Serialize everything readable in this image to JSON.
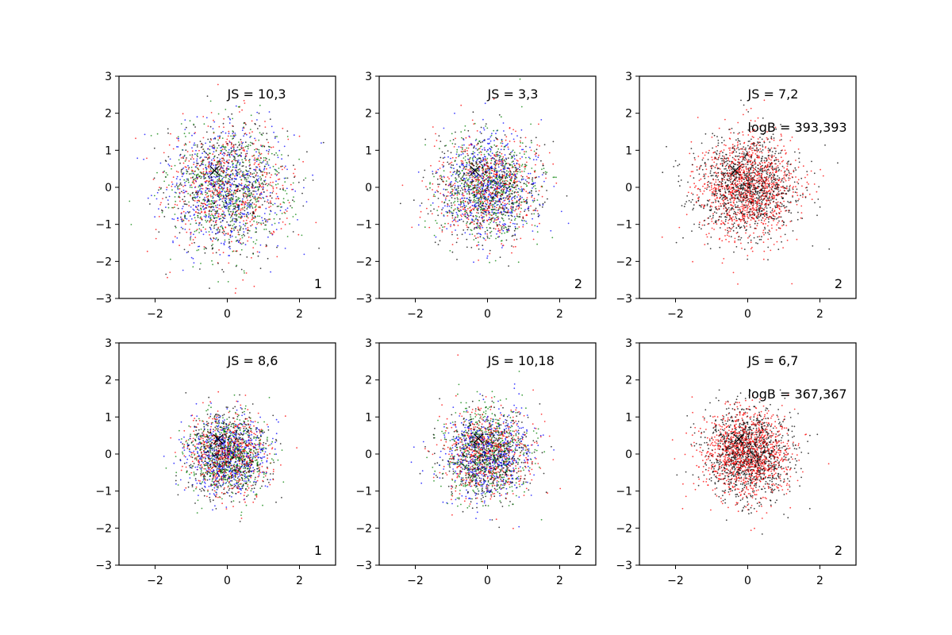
{
  "chart_data": [
    {
      "type": "scatter",
      "xlim": [
        -3,
        3
      ],
      "ylim": [
        -3,
        3
      ],
      "xticks": [
        -2,
        0,
        2
      ],
      "yticks": [
        -3,
        -2,
        -1,
        0,
        1,
        2,
        3
      ],
      "grid": false,
      "spread": 0.85,
      "series_colors": [
        "#0000ff",
        "#ff0000",
        "#008000",
        "#000000"
      ],
      "marker": {
        "x": -0.35,
        "y": 0.45
      },
      "annotations": {
        "js": "JS = 10,3",
        "logb": "",
        "corner": "1"
      }
    },
    {
      "type": "scatter",
      "xlim": [
        -3,
        3
      ],
      "ylim": [
        -3,
        3
      ],
      "xticks": [
        -2,
        0,
        2
      ],
      "yticks": [
        -3,
        -2,
        -1,
        0,
        1,
        2,
        3
      ],
      "grid": false,
      "spread": 0.7,
      "series_colors": [
        "#0000ff",
        "#ff0000",
        "#008000",
        "#000000"
      ],
      "marker": {
        "x": -0.35,
        "y": 0.45
      },
      "annotations": {
        "js": "JS = 3,3",
        "logb": "",
        "corner": "2"
      }
    },
    {
      "type": "scatter",
      "xlim": [
        -3,
        3
      ],
      "ylim": [
        -3,
        3
      ],
      "xticks": [
        -2,
        0,
        2
      ],
      "yticks": [
        -3,
        -2,
        -1,
        0,
        1,
        2,
        3
      ],
      "grid": false,
      "spread": 0.7,
      "series_colors": [
        "#000000",
        "#ff0000"
      ],
      "marker": {
        "x": -0.35,
        "y": 0.45
      },
      "annotations": {
        "js": "JS = 7,2",
        "logb": "logB = 393,393",
        "corner": "2"
      }
    },
    {
      "type": "scatter",
      "xlim": [
        -3,
        3
      ],
      "ylim": [
        -3,
        3
      ],
      "xticks": [
        -2,
        0,
        2
      ],
      "yticks": [
        -3,
        -2,
        -1,
        0,
        1,
        2,
        3
      ],
      "grid": false,
      "spread": 0.55,
      "series_colors": [
        "#0000ff",
        "#ff0000",
        "#008000",
        "#000000"
      ],
      "marker": {
        "x": -0.25,
        "y": 0.4
      },
      "annotations": {
        "js": "JS = 8,6",
        "logb": "",
        "corner": "1"
      }
    },
    {
      "type": "scatter",
      "xlim": [
        -3,
        3
      ],
      "ylim": [
        -3,
        3
      ],
      "xticks": [
        -2,
        0,
        2
      ],
      "yticks": [
        -3,
        -2,
        -1,
        0,
        1,
        2,
        3
      ],
      "grid": false,
      "spread": 0.6,
      "series_colors": [
        "#0000ff",
        "#ff0000",
        "#008000",
        "#000000"
      ],
      "marker": {
        "x": -0.25,
        "y": 0.42
      },
      "annotations": {
        "js": "JS = 10,18",
        "logb": "",
        "corner": "2"
      }
    },
    {
      "type": "scatter",
      "xlim": [
        -3,
        3
      ],
      "ylim": [
        -3,
        3
      ],
      "xticks": [
        -2,
        0,
        2
      ],
      "yticks": [
        -3,
        -2,
        -1,
        0,
        1,
        2,
        3
      ],
      "grid": false,
      "spread": 0.6,
      "series_colors": [
        "#000000",
        "#ff0000"
      ],
      "marker": {
        "x": -0.25,
        "y": 0.4
      },
      "annotations": {
        "js": "JS = 6,7",
        "logb": "logB = 367,367",
        "corner": "2"
      }
    }
  ]
}
